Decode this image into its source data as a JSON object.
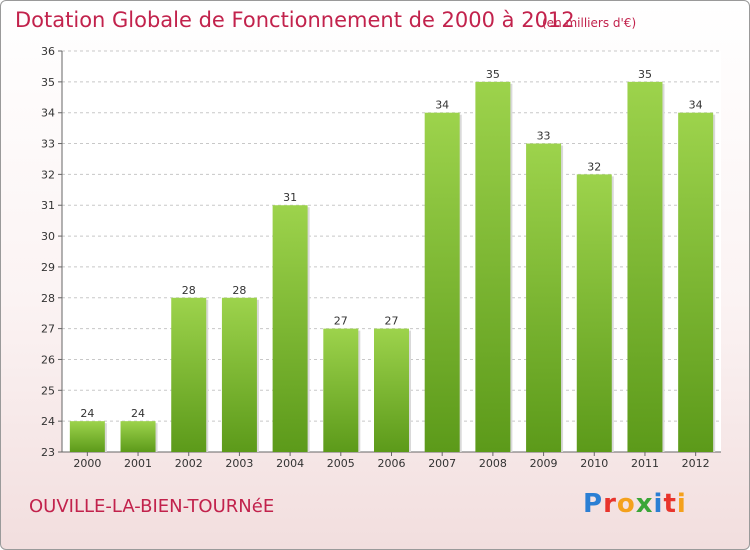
{
  "header": {
    "title": "Dotation Globale de Fonctionnement de 2000 à 2012",
    "unit_note": "(en milliers d'€)"
  },
  "footer": {
    "place_name": "OUVILLE-LA-BIEN-TOURNéE",
    "logo_text": "Proxiti",
    "logo_colors": [
      "#2b7fd4",
      "#e8342c",
      "#f4a11c",
      "#3aa637",
      "#2b7fd4",
      "#e8342c",
      "#f4a11c"
    ]
  },
  "colors": {
    "title": "#c2224c",
    "bar_top": "#9dd34c",
    "bar_bottom": "#5c9a1a",
    "grid": "#c8c8c8",
    "axis_text": "#333333"
  },
  "chart_data": {
    "type": "bar",
    "title": "Dotation Globale de Fonctionnement de 2000 à 2012",
    "subtitle": "(en milliers d'€)",
    "categories": [
      "2000",
      "2001",
      "2002",
      "2003",
      "2004",
      "2005",
      "2006",
      "2007",
      "2008",
      "2009",
      "2010",
      "2011",
      "2012"
    ],
    "values": [
      24,
      24,
      28,
      28,
      31,
      27,
      27,
      34,
      35,
      33,
      32,
      35,
      34
    ],
    "ylim": [
      23,
      36
    ],
    "yticks": [
      23,
      24,
      25,
      26,
      27,
      28,
      29,
      30,
      31,
      32,
      33,
      34,
      35,
      36
    ],
    "grid": "horizontal dashed",
    "legend": "none",
    "data_labels": true
  }
}
